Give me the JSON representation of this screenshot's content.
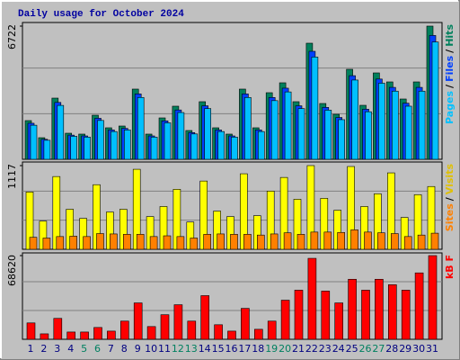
{
  "chart_data": [
    {
      "type": "bar",
      "title": "Daily usage for October 2024",
      "ylim": [
        0,
        6722
      ],
      "yticks": [
        6722
      ],
      "legend_separator": "/",
      "series": [
        {
          "name": "Hits",
          "color": "#00805c",
          "values": [
            1953,
            1090,
            3088,
            1317,
            1272,
            2225,
            1590,
            1680,
            3543,
            1272,
            2089,
            2680,
            1453,
            2907,
            1590,
            1272,
            3543,
            1590,
            3361,
            3861,
            2907,
            5859,
            2816,
            2271,
            4542,
            2725,
            4360,
            3906,
            3043,
            3906,
            6722
          ]
        },
        {
          "name": "Files",
          "color": "#0040ff",
          "values": [
            1820,
            1010,
            2870,
            1220,
            1180,
            2070,
            1480,
            1560,
            3300,
            1180,
            1940,
            2490,
            1350,
            2700,
            1480,
            1180,
            3300,
            1480,
            3120,
            3590,
            2700,
            5450,
            2620,
            2110,
            4220,
            2530,
            4050,
            3630,
            2830,
            3630,
            6250
          ]
        },
        {
          "name": "Pages",
          "color": "#00c0ff",
          "values": [
            1720,
            960,
            2720,
            1160,
            1120,
            1960,
            1400,
            1480,
            3120,
            1120,
            1840,
            2360,
            1280,
            2560,
            1400,
            1120,
            3120,
            1400,
            2960,
            3400,
            2560,
            5160,
            2480,
            2000,
            4000,
            2400,
            3840,
            3440,
            2680,
            3440,
            5920
          ]
        }
      ]
    },
    {
      "type": "bar",
      "ylim": [
        0,
        1117
      ],
      "yticks": [
        1117
      ],
      "legend_separator": "/",
      "series": [
        {
          "name": "Visits",
          "color": "#ffff00",
          "values": [
            765,
            376,
            971,
            534,
            413,
            862,
            498,
            534,
            1068,
            437,
            571,
            801,
            364,
            911,
            510,
            437,
            1008,
            449,
            777,
            959,
            668,
            1117,
            680,
            522,
            1105,
            571,
            741,
            1020,
            425,
            729,
            838
          ]
        },
        {
          "name": "Sites",
          "color": "#ff8000",
          "values": [
            160,
            150,
            170,
            175,
            170,
            210,
            205,
            200,
            200,
            170,
            180,
            170,
            150,
            200,
            205,
            200,
            200,
            190,
            205,
            220,
            200,
            230,
            230,
            225,
            260,
            230,
            220,
            210,
            170,
            190,
            215
          ]
        }
      ]
    },
    {
      "type": "bar",
      "ylim": [
        0,
        68620
      ],
      "yticks": [
        68620
      ],
      "categories": [
        "1",
        "2",
        "3",
        "4",
        "5",
        "6",
        "7",
        "8",
        "9",
        "10",
        "11",
        "12",
        "13",
        "14",
        "15",
        "16",
        "17",
        "18",
        "19",
        "20",
        "21",
        "22",
        "23",
        "24",
        "25",
        "26",
        "27",
        "28",
        "29",
        "30",
        "31"
      ],
      "category_colors": [
        "#000080",
        "#000080",
        "#000080",
        "#000080",
        "#008060",
        "#008060",
        "#000080",
        "#000080",
        "#000080",
        "#000080",
        "#000080",
        "#008060",
        "#008060",
        "#000080",
        "#000080",
        "#000080",
        "#000080",
        "#000080",
        "#008060",
        "#008060",
        "#000080",
        "#000080",
        "#000080",
        "#000080",
        "#000080",
        "#008060",
        "#008060",
        "#000080",
        "#000080",
        "#000080",
        "#000080"
      ],
      "series": [
        {
          "name": "kB F",
          "color": "#ff0000",
          "values": [
            13426,
            4475,
            17155,
            5967,
            5967,
            9696,
            6713,
            14917,
            29835,
            10442,
            20139,
            28344,
            14917,
            35802,
            11934,
            6713,
            25360,
            8205,
            14917,
            32073,
            40278,
            66383,
            39532,
            29835,
            49228,
            40278,
            49228,
            44753,
            40278,
            54450,
            68620
          ]
        }
      ]
    }
  ]
}
